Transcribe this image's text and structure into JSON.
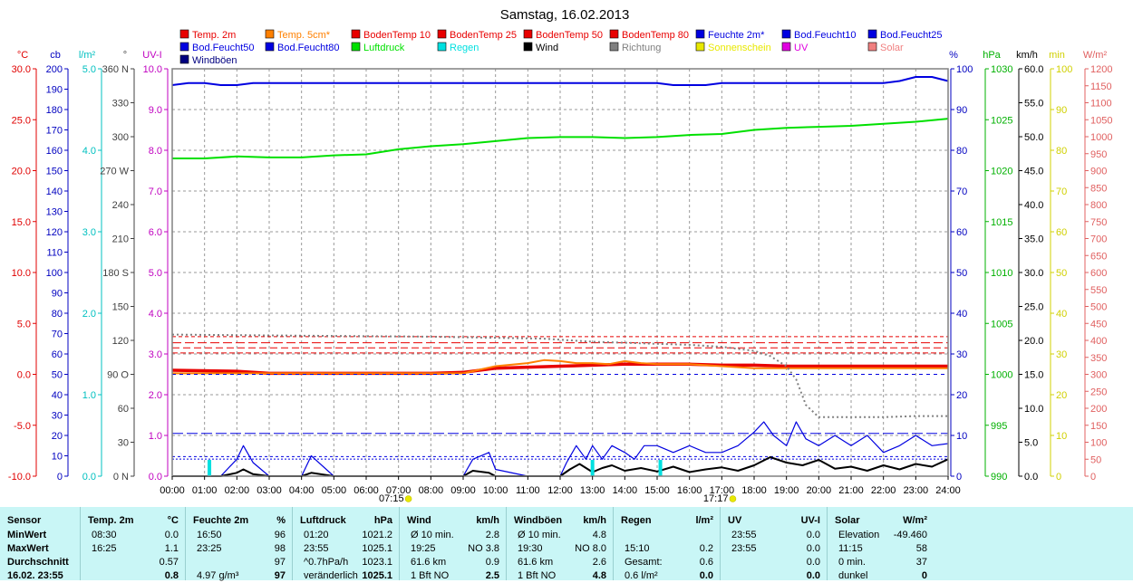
{
  "title": "Samstag, 16.02.2013",
  "legend": [
    {
      "label": "Temp. 2m",
      "color": "#e80000"
    },
    {
      "label": "Temp. 5cm*",
      "color": "#ff8000"
    },
    {
      "label": "BodenTemp 10",
      "color": "#e80000"
    },
    {
      "label": "BodenTemp 25",
      "color": "#e80000"
    },
    {
      "label": "BodenTemp 50",
      "color": "#e80000"
    },
    {
      "label": "BodenTemp 80",
      "color": "#e80000"
    },
    {
      "label": "Feuchte 2m*",
      "color": "#0000e0"
    },
    {
      "label": "Bod.Feucht10",
      "color": "#0000e0"
    },
    {
      "label": "Bod.Feucht25",
      "color": "#0000e0"
    },
    {
      "label": "Bod.Feucht50",
      "color": "#0000e0"
    },
    {
      "label": "Bod.Feucht80",
      "color": "#0000e0"
    },
    {
      "label": "Luftdruck",
      "color": "#00e000"
    },
    {
      "label": "Regen",
      "color": "#00e0e0"
    },
    {
      "label": "Wind",
      "color": "#000000"
    },
    {
      "label": "Richtung",
      "color": "#808080"
    },
    {
      "label": "Sonnenschein",
      "color": "#e8e800"
    },
    {
      "label": "UV",
      "color": "#e000e0"
    },
    {
      "label": "Solar",
      "color": "#f08080"
    },
    {
      "label": "Windböen",
      "color": "#000080"
    }
  ],
  "chart_data": {
    "type": "line",
    "title": "Samstag, 16.02.2013",
    "x_ticks": [
      "00:00",
      "01:00",
      "02:00",
      "03:00",
      "04:00",
      "05:00",
      "06:00",
      "07:00",
      "08:00",
      "09:00",
      "10:00",
      "11:00",
      "12:00",
      "13:00",
      "14:00",
      "15:00",
      "16:00",
      "17:00",
      "18:00",
      "19:00",
      "20:00",
      "21:00",
      "22:00",
      "23:00",
      "24:00"
    ],
    "sunrise": "07:15",
    "sunset": "17:17",
    "grid": true,
    "axes": {
      "temp": {
        "label": "°C",
        "min": -10,
        "max": 30,
        "ticks": [
          "30.0",
          "25.0",
          "20.0",
          "15.0",
          "10.0",
          "5.0",
          "0.0",
          "-5.0",
          "-10.0"
        ],
        "color": "#e00000"
      },
      "cb": {
        "label": "cb",
        "min": 0,
        "max": 200,
        "ticks": [
          "200",
          "190",
          "180",
          "170",
          "160",
          "150",
          "140",
          "130",
          "120",
          "110",
          "100",
          "90",
          "80",
          "70",
          "60",
          "50",
          "40",
          "30",
          "20",
          "10",
          "0"
        ],
        "color": "#0000c0"
      },
      "rain": {
        "label": "l/m²",
        "min": 0,
        "max": 5,
        "ticks": [
          "5.0",
          "4.0",
          "3.0",
          "2.0",
          "1.0",
          "0.0"
        ],
        "color": "#00c0c0"
      },
      "dir": {
        "label": "°",
        "ticks": [
          "360 N",
          "330",
          "300",
          "270 W",
          "240",
          "210",
          "180 S",
          "150",
          "120",
          "90 O",
          "60",
          "30",
          "0 N"
        ],
        "color": "#404040"
      },
      "uv": {
        "label": "UV-I",
        "min": 0,
        "max": 10,
        "ticks": [
          "10.0",
          "9.0",
          "8.0",
          "7.0",
          "6.0",
          "5.0",
          "4.0",
          "3.0",
          "2.0",
          "1.0",
          "0.0"
        ],
        "color": "#c000c0"
      },
      "hum": {
        "label": "%",
        "min": 0,
        "max": 100,
        "ticks": [
          "100",
          "90",
          "80",
          "70",
          "60",
          "50",
          "40",
          "30",
          "20",
          "10",
          "0"
        ],
        "color": "#0000c0"
      },
      "press": {
        "label": "hPa",
        "min": 990,
        "max": 1030,
        "ticks": [
          "1030",
          "1025",
          "1020",
          "1015",
          "1010",
          "1005",
          "1000",
          "995",
          "990"
        ],
        "color": "#00b000"
      },
      "wind": {
        "label": "km/h",
        "min": 0,
        "max": 60,
        "ticks": [
          "60.0",
          "55.0",
          "50.0",
          "45.0",
          "40.0",
          "35.0",
          "30.0",
          "25.0",
          "20.0",
          "15.0",
          "10.0",
          "5.0",
          "0.0"
        ],
        "color": "#000000"
      },
      "min": {
        "label": "min",
        "min": 0,
        "max": 100,
        "ticks": [
          "100",
          "90",
          "80",
          "70",
          "60",
          "50",
          "40",
          "30",
          "20",
          "10",
          "0"
        ],
        "color": "#d0d000"
      },
      "solar": {
        "label": "W/m²",
        "min": 0,
        "max": 1200,
        "ticks": [
          "1200",
          "1150",
          "1100",
          "1050",
          "1000",
          "950",
          "900",
          "850",
          "800",
          "750",
          "700",
          "650",
          "600",
          "550",
          "500",
          "450",
          "400",
          "350",
          "300",
          "250",
          "200",
          "150",
          "100",
          "50",
          "0"
        ],
        "color": "#e06060"
      }
    },
    "series": [
      {
        "name": "Feuchte 2m*",
        "axis": "hum",
        "x": [
          0,
          0.5,
          1,
          1.5,
          2,
          2.5,
          3,
          4,
          5,
          6,
          7,
          8,
          9,
          10,
          11,
          12,
          13,
          14,
          15,
          15.5,
          16,
          16.5,
          17,
          18,
          19,
          20,
          21,
          22,
          22.5,
          23,
          23.5,
          24
        ],
        "y": [
          96,
          96.5,
          96.5,
          96,
          96,
          96.5,
          96.5,
          96.5,
          96.5,
          96.5,
          96.5,
          96.5,
          96.5,
          96.5,
          96.5,
          96.5,
          96.5,
          96.5,
          96.5,
          96,
          96,
          96,
          96.5,
          96.5,
          96.5,
          96.5,
          96.5,
          96.5,
          97,
          98,
          98,
          97
        ]
      },
      {
        "name": "Luftdruck",
        "axis": "press",
        "x": [
          0,
          1,
          2,
          3,
          4,
          5,
          6,
          7,
          8,
          9,
          10,
          11,
          12,
          13,
          14,
          15,
          16,
          17,
          18,
          19,
          20,
          21,
          22,
          23,
          24
        ],
        "y": [
          1021.2,
          1021.2,
          1021.4,
          1021.3,
          1021.3,
          1021.5,
          1021.6,
          1022.1,
          1022.4,
          1022.6,
          1022.9,
          1023.2,
          1023.3,
          1023.3,
          1023.2,
          1023.3,
          1023.5,
          1023.6,
          1024.0,
          1024.2,
          1024.3,
          1024.4,
          1024.6,
          1024.8,
          1025.1
        ]
      },
      {
        "name": "Temp. 2m",
        "axis": "temp",
        "x": [
          0,
          2,
          3,
          4,
          5,
          6,
          7,
          8,
          9,
          10,
          11,
          12,
          13,
          14,
          15,
          16,
          17,
          18,
          19,
          20,
          21,
          22,
          23,
          24
        ],
        "y": [
          0.4,
          0.3,
          0.1,
          0.1,
          0.1,
          0.1,
          0.1,
          0.1,
          0.2,
          0.6,
          0.7,
          0.8,
          0.9,
          1.0,
          1.0,
          1.0,
          0.9,
          0.9,
          0.8,
          0.8,
          0.8,
          0.8,
          0.8,
          0.8
        ]
      },
      {
        "name": "Temp. 5cm*",
        "axis": "temp",
        "x": [
          0,
          2,
          3,
          4,
          5,
          6,
          7,
          8,
          9,
          10,
          11,
          11.5,
          12,
          12.5,
          13,
          13.5,
          14,
          14.5,
          15,
          16,
          17,
          18,
          19,
          20,
          21,
          22,
          23,
          24
        ],
        "y": [
          0.1,
          0.1,
          0.1,
          0.1,
          0.1,
          0.1,
          0.1,
          0.1,
          0.1,
          0.8,
          1.1,
          1.4,
          1.3,
          1.1,
          1.1,
          1.0,
          1.3,
          1.1,
          1.0,
          1.0,
          0.8,
          0.6,
          0.6,
          0.6,
          0.6,
          0.6,
          0.6,
          0.6
        ]
      },
      {
        "name": "BodenTemp 10",
        "axis": "temp",
        "x": [
          0,
          24
        ],
        "y": [
          2.1,
          2.1
        ]
      },
      {
        "name": "BodenTemp 25",
        "axis": "temp",
        "x": [
          0,
          24
        ],
        "y": [
          2.6,
          2.6
        ]
      },
      {
        "name": "BodenTemp 50",
        "axis": "temp",
        "x": [
          0,
          24
        ],
        "y": [
          3.1,
          3.1
        ]
      },
      {
        "name": "BodenTemp 80",
        "axis": "temp",
        "x": [
          0,
          24
        ],
        "y": [
          3.7,
          3.7
        ]
      },
      {
        "name": "Bod.Feucht10",
        "axis": "hum",
        "x": [
          0,
          24
        ],
        "y": [
          10.5,
          10.5
        ]
      },
      {
        "name": "Bod.Feucht25",
        "axis": "hum",
        "x": [
          0,
          24
        ],
        "y": [
          4.8,
          4.8
        ]
      },
      {
        "name": "Bod.Feucht50",
        "axis": "hum",
        "x": [
          0,
          24
        ],
        "y": [
          4.2,
          4.2
        ]
      },
      {
        "name": "Bod.Feucht80",
        "axis": "hum",
        "x": [
          0,
          24
        ],
        "y": [
          25,
          25
        ]
      },
      {
        "name": "Richtung",
        "axis": "temp",
        "x": [
          0,
          4,
          8,
          11.5,
          12.5,
          13,
          14,
          15,
          16,
          17,
          17.5,
          18,
          18.5,
          19,
          19.3,
          19.6,
          20,
          21,
          22,
          23,
          24
        ],
        "y": [
          3.9,
          3.8,
          3.7,
          3.5,
          3.3,
          3.2,
          3.1,
          3.0,
          2.9,
          2.7,
          2.5,
          2.3,
          1.8,
          0.8,
          -0.5,
          -3.0,
          -4.2,
          -4.2,
          -4.2,
          -4.1,
          -4.1
        ]
      },
      {
        "name": "Windböen",
        "axis": "wind",
        "x": [
          0,
          1.5,
          2,
          2.2,
          2.5,
          3,
          4,
          4.3,
          5,
          9,
          9.3,
          9.8,
          10,
          11,
          12,
          12.2,
          12.5,
          12.8,
          13,
          13.3,
          13.6,
          14,
          14.3,
          14.6,
          15,
          15.5,
          16,
          16.5,
          17,
          17.5,
          18,
          18.3,
          18.6,
          19,
          19.3,
          19.6,
          20,
          20.5,
          21,
          21.5,
          22,
          22.5,
          23,
          23.5,
          24
        ],
        "y": [
          0,
          0,
          2.5,
          4.5,
          2,
          0,
          0,
          3,
          0,
          0,
          2.5,
          3.5,
          1,
          0,
          0,
          2,
          4.5,
          2.5,
          4.5,
          2.5,
          4.5,
          3.5,
          2.5,
          4.5,
          4.5,
          3.5,
          4.5,
          3.5,
          3.5,
          4.5,
          6.5,
          8,
          6,
          4.5,
          8,
          5.5,
          4.5,
          6,
          4.5,
          6,
          3.5,
          4.5,
          6,
          4.5,
          4.8
        ]
      },
      {
        "name": "Wind",
        "axis": "wind",
        "x": [
          0,
          1.5,
          2,
          2.2,
          2.5,
          3,
          4,
          4.3,
          5,
          9,
          9.3,
          9.8,
          10,
          11,
          12,
          12.3,
          12.6,
          13,
          13.3,
          13.6,
          14,
          14.5,
          15,
          15.5,
          16,
          16.5,
          17,
          17.5,
          18,
          18.5,
          19,
          19.5,
          20,
          20.5,
          21,
          21.5,
          22,
          22.5,
          23,
          23.5,
          24
        ],
        "y": [
          0,
          0,
          0.5,
          1,
          0.3,
          0,
          0,
          0.5,
          0,
          0,
          0.8,
          0.5,
          0,
          0,
          0,
          1,
          1.8,
          0.6,
          1.2,
          1.6,
          0.8,
          1.2,
          0.7,
          1.4,
          0.6,
          1,
          1.3,
          0.8,
          1.6,
          2.8,
          2.0,
          1.6,
          2.4,
          1.1,
          1.4,
          0.8,
          1.6,
          1.0,
          1.8,
          1.4,
          2.5
        ]
      },
      {
        "name": "Regen",
        "axis": "rain",
        "x": [
          1.15,
          13.0,
          15.1
        ],
        "y": [
          0.2,
          0.2,
          0.2
        ]
      }
    ]
  },
  "stats": {
    "sensor": {
      "header": "Sensor",
      "rows": [
        "MinWert",
        "MaxWert",
        "Durchschnitt",
        "16.02. 23:55"
      ]
    },
    "temp": {
      "header": "Temp. 2m",
      "unit": "°C",
      "rows": [
        [
          "08:30",
          "0.0"
        ],
        [
          "16:25",
          "1.1"
        ],
        [
          "",
          "0.57"
        ],
        [
          "",
          "0.8"
        ]
      ]
    },
    "feuchte": {
      "header": "Feuchte 2m",
      "unit": "%",
      "rows": [
        [
          "16:50",
          "96"
        ],
        [
          "23:25",
          "98"
        ],
        [
          "",
          "97"
        ],
        [
          "4.97 g/m³",
          "97"
        ]
      ]
    },
    "luftdruck": {
      "header": "Luftdruck",
      "unit": "hPa",
      "rows": [
        [
          "01:20",
          "1021.2"
        ],
        [
          "23:55",
          "1025.1"
        ],
        [
          "^0.7hPa/h",
          "1023.1"
        ],
        [
          "veränderlich",
          "1025.1"
        ]
      ]
    },
    "wind": {
      "header": "Wind",
      "unit": "km/h",
      "rows": [
        [
          "Ø 10 min.",
          "2.8"
        ],
        [
          "19:25",
          "NO 3.8"
        ],
        [
          "61.6 km",
          "0.9"
        ],
        [
          "1 Bft NO",
          "2.5"
        ]
      ]
    },
    "boeen": {
      "header": "Windböen",
      "unit": "km/h",
      "rows": [
        [
          "Ø 10 min.",
          "4.8"
        ],
        [
          "19:30",
          "NO 8.0"
        ],
        [
          "61.6 km",
          "2.6"
        ],
        [
          "1 Bft NO",
          "4.8"
        ]
      ]
    },
    "regen": {
      "header": "Regen",
      "unit": "l/m²",
      "rows": [
        [
          "",
          ""
        ],
        [
          "15:10",
          "0.2"
        ],
        [
          "Gesamt:",
          "0.6"
        ],
        [
          "0.6 l/m²",
          "0.0"
        ]
      ]
    },
    "uv": {
      "header": "UV",
      "unit": "UV-I",
      "rows": [
        [
          "23:55",
          "0.0"
        ],
        [
          "23:55",
          "0.0"
        ],
        [
          "",
          "0.0"
        ],
        [
          "",
          "0.0"
        ]
      ]
    },
    "solar": {
      "header": "Solar",
      "unit": "W/m²",
      "rows": [
        [
          "Elevation",
          "-49.460"
        ],
        [
          "11:15",
          "58"
        ],
        [
          "0 min.",
          "37"
        ],
        [
          "dunkel",
          "0"
        ]
      ]
    }
  }
}
